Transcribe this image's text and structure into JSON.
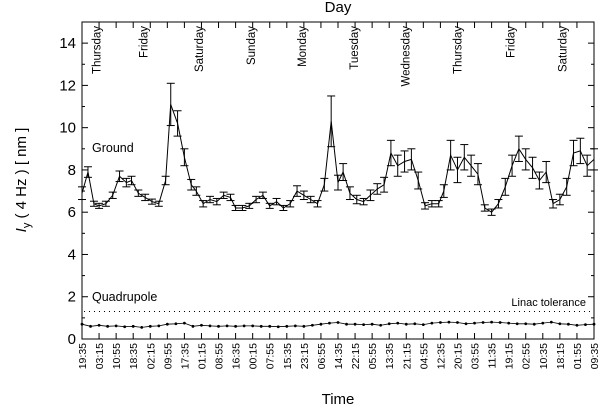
{
  "chart_data": {
    "type": "line",
    "xlabel": "Time",
    "ylabel_parts": [
      "I",
      "y",
      " ( 4 Hz ) [ nm ]"
    ],
    "top_axis_label": "Day",
    "ylim": [
      0,
      15
    ],
    "yticks": [
      0,
      2,
      4,
      6,
      8,
      10,
      12,
      14
    ],
    "time_ticks": [
      "19:35",
      "03:15",
      "10:55",
      "18:35",
      "02:15",
      "09:55",
      "17:35",
      "01:15",
      "08:55",
      "16:35",
      "00:15",
      "07:55",
      "15:35",
      "23:15",
      "06:55",
      "14:35",
      "22:15",
      "05:55",
      "13:35",
      "21:15",
      "04:55",
      "12:35",
      "20:15",
      "03:55",
      "11:35",
      "19:15",
      "02:55",
      "10:35",
      "18:15",
      "01:55",
      "09:35"
    ],
    "days": [
      {
        "label": "Thursday",
        "tick": 0.85
      },
      {
        "label": "Friday",
        "tick": 3.6
      },
      {
        "label": "Saturday",
        "tick": 6.85
      },
      {
        "label": "Sunday",
        "tick": 9.9
      },
      {
        "label": "Monday",
        "tick": 12.9
      },
      {
        "label": "Tuesday",
        "tick": 15.95
      },
      {
        "label": "Wednesday",
        "tick": 18.95
      },
      {
        "label": "Thursday",
        "tick": 22.0
      },
      {
        "label": "Friday",
        "tick": 25.1
      },
      {
        "label": "Saturday",
        "tick": 28.15
      }
    ],
    "annotations": {
      "ground": "Ground",
      "quadrupole": "Quadrupole",
      "linac_tolerance": "Linac tolerance"
    },
    "linac_tolerance_level": 1.3,
    "series": [
      {
        "x": [
          0,
          0.35,
          0.7,
          1.0,
          1.4,
          1.8,
          2.2,
          2.6,
          2.9,
          3.3,
          3.7,
          4.1,
          4.5,
          4.9,
          5.2,
          5.6,
          6.0,
          6.4,
          6.7,
          7.1,
          7.5,
          7.9,
          8.3,
          8.7,
          9.0,
          9.4,
          9.8,
          10.2,
          10.6,
          11.0,
          11.4,
          11.8,
          12.2,
          12.6,
          13.0,
          13.4,
          13.8,
          14.2,
          14.6,
          15.0,
          15.3,
          15.7,
          16.1,
          16.5,
          16.9,
          17.3,
          17.7,
          18.1,
          18.5,
          18.9,
          19.3,
          19.7,
          20.1,
          20.5,
          20.9,
          21.2,
          21.6,
          22.0,
          22.4,
          22.8,
          23.2,
          23.6,
          24.0,
          24.4,
          24.8,
          25.2,
          25.6,
          26.0,
          26.4,
          26.8,
          27.2,
          27.6,
          28.0,
          28.4,
          28.8,
          29.2,
          29.6,
          30.0
        ],
        "y": [
          6.9,
          7.9,
          6.4,
          6.3,
          6.4,
          6.8,
          7.7,
          7.4,
          7.5,
          6.9,
          6.7,
          6.5,
          6.4,
          7.5,
          11.1,
          10.2,
          8.6,
          7.3,
          7.0,
          6.4,
          6.6,
          6.5,
          6.8,
          6.7,
          6.2,
          6.2,
          6.3,
          6.6,
          6.8,
          6.3,
          6.5,
          6.2,
          6.4,
          7.0,
          6.8,
          6.6,
          6.4,
          7.3,
          10.3,
          7.4,
          7.9,
          6.9,
          6.6,
          6.5,
          6.8,
          7.1,
          7.3,
          8.8,
          8.2,
          8.4,
          8.5,
          7.5,
          6.3,
          6.4,
          6.4,
          7.0,
          8.7,
          8.0,
          8.6,
          8.2,
          7.8,
          6.2,
          6.0,
          6.4,
          7.2,
          8.2,
          9.0,
          8.5,
          8.1,
          7.5,
          7.9,
          6.4,
          6.6,
          7.2,
          8.8,
          8.9,
          8.2,
          8.5
        ],
        "err": [
          0.3,
          0.25,
          0.12,
          0.12,
          0.12,
          0.15,
          0.25,
          0.2,
          0.2,
          0.15,
          0.15,
          0.12,
          0.12,
          0.2,
          1.0,
          0.6,
          0.4,
          0.25,
          0.2,
          0.15,
          0.15,
          0.15,
          0.15,
          0.15,
          0.12,
          0.12,
          0.12,
          0.15,
          0.15,
          0.12,
          0.15,
          0.12,
          0.15,
          0.25,
          0.2,
          0.15,
          0.15,
          0.3,
          1.2,
          0.35,
          0.4,
          0.3,
          0.2,
          0.15,
          0.25,
          0.25,
          0.35,
          0.6,
          0.5,
          0.5,
          0.5,
          0.4,
          0.15,
          0.15,
          0.15,
          0.3,
          0.7,
          0.6,
          0.6,
          0.5,
          0.5,
          0.15,
          0.15,
          0.2,
          0.4,
          0.5,
          0.6,
          0.5,
          0.5,
          0.4,
          0.5,
          0.2,
          0.25,
          0.4,
          0.6,
          0.6,
          0.5,
          0.5
        ]
      },
      {
        "x": [
          0,
          0.5,
          1.0,
          1.5,
          2.0,
          2.5,
          3.0,
          3.5,
          4.0,
          4.5,
          5.0,
          5.5,
          6.0,
          6.5,
          7.0,
          7.5,
          8.0,
          8.5,
          9.0,
          9.5,
          10.0,
          10.5,
          11.0,
          11.5,
          12.0,
          12.5,
          13.0,
          13.5,
          14.0,
          14.5,
          15.0,
          15.5,
          16.0,
          16.5,
          17.0,
          17.5,
          18.0,
          18.5,
          19.0,
          19.5,
          20.0,
          20.5,
          21.0,
          21.5,
          22.0,
          22.5,
          23.0,
          23.5,
          24.0,
          24.5,
          25.0,
          25.5,
          26.0,
          26.5,
          27.0,
          27.5,
          28.0,
          28.5,
          29.0,
          29.5,
          30.0
        ],
        "y": [
          0.7,
          0.6,
          0.65,
          0.6,
          0.62,
          0.58,
          0.6,
          0.55,
          0.6,
          0.62,
          0.7,
          0.72,
          0.75,
          0.6,
          0.65,
          0.62,
          0.6,
          0.62,
          0.6,
          0.62,
          0.62,
          0.6,
          0.6,
          0.58,
          0.6,
          0.62,
          0.6,
          0.65,
          0.7,
          0.75,
          0.78,
          0.7,
          0.7,
          0.68,
          0.7,
          0.65,
          0.72,
          0.75,
          0.7,
          0.72,
          0.68,
          0.75,
          0.78,
          0.8,
          0.78,
          0.72,
          0.75,
          0.78,
          0.8,
          0.78,
          0.75,
          0.72,
          0.72,
          0.7,
          0.75,
          0.8,
          0.72,
          0.7,
          0.65,
          0.68,
          0.7
        ]
      }
    ]
  }
}
